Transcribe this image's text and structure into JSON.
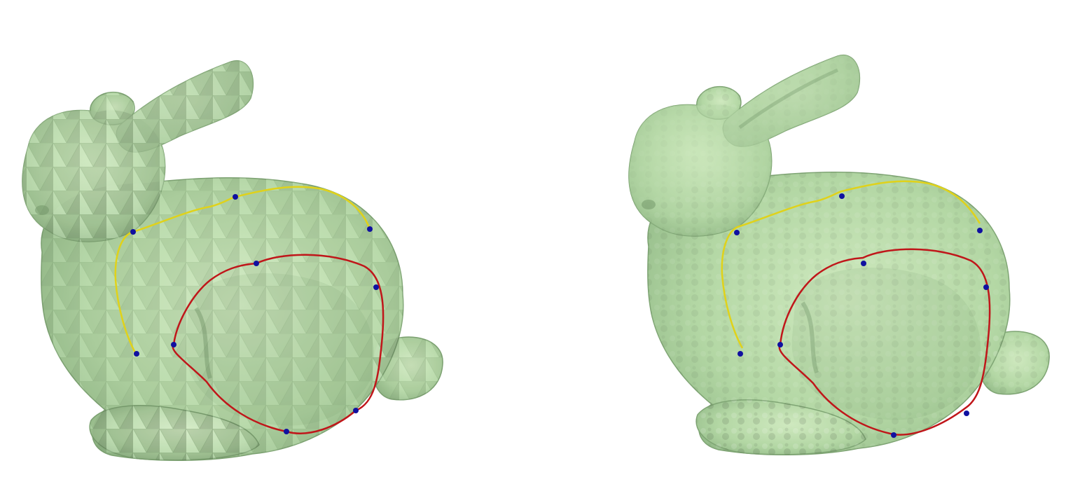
{
  "scene": {
    "background": "#ffffff",
    "panels": [
      {
        "name": "faceted-mesh",
        "surface_style": "low-poly faceted",
        "curves": [
          {
            "name": "open-curve",
            "color": "#e0d21a",
            "control_points": 4
          },
          {
            "name": "closed-loop",
            "color": "#c0161a",
            "control_points": 5
          }
        ]
      },
      {
        "name": "smooth-mesh",
        "surface_style": "refined smooth",
        "curves": [
          {
            "name": "open-curve",
            "color": "#e0d21a",
            "control_points": 4
          },
          {
            "name": "closed-loop",
            "color": "#c0161a",
            "control_points": 5
          }
        ]
      }
    ],
    "colors": {
      "mesh_fill": "#b4d9a6",
      "mesh_light": "#cdeabd",
      "mesh_shadow": "#7fa574",
      "mesh_edge": "#6f9466",
      "control_point": "#1010a0"
    }
  }
}
